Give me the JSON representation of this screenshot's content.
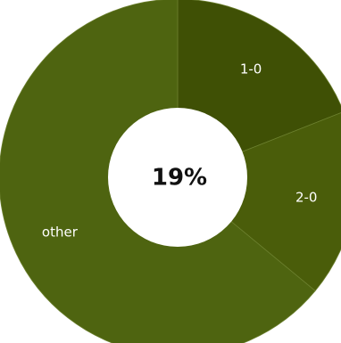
{
  "chart_data": {
    "type": "pie",
    "donut": true,
    "center_label": "19%",
    "slices": [
      {
        "label": "1-0",
        "value": 19,
        "color": "#3f5005"
      },
      {
        "label": "2-0",
        "value": 17,
        "color": "#4a5d0a"
      },
      {
        "label": "other",
        "value": 64,
        "color": "#4e6410"
      }
    ],
    "slice_border_color": "#6b7f2e",
    "hole_color": "#ffffff"
  }
}
